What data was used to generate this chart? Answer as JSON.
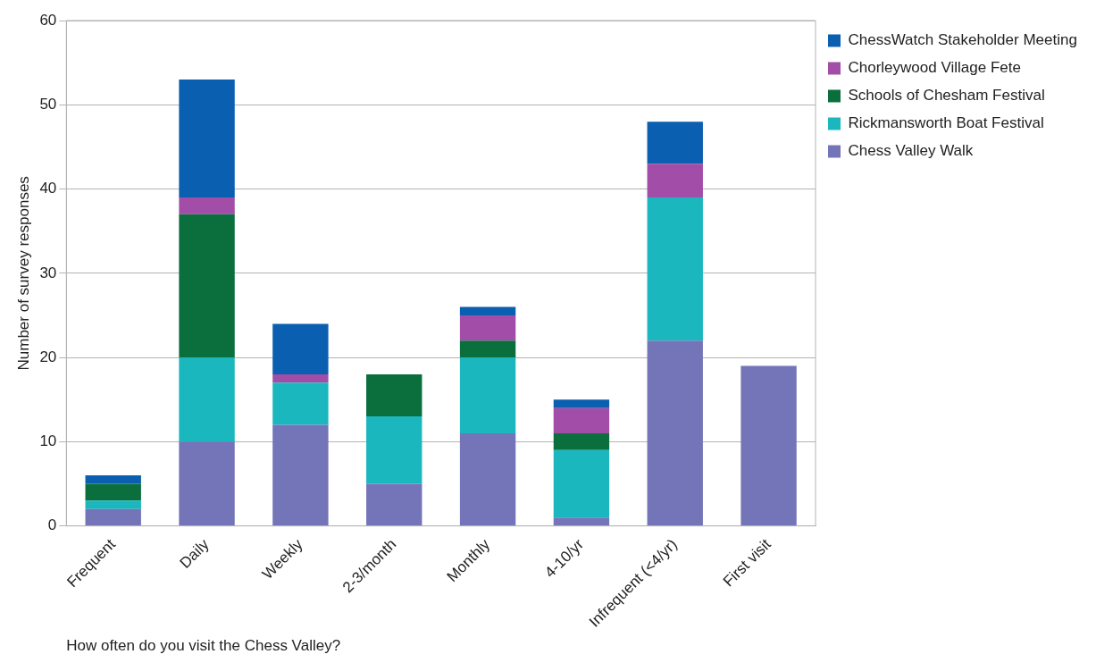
{
  "chart_data": {
    "type": "bar",
    "xlabel": "How often do you visit the Chess Valley?",
    "ylabel": "Number of survey responses",
    "categories": [
      "Frequent",
      "Daily",
      "Weekly",
      "2-3/month",
      "Monthly",
      "4-10/yr",
      "Infrequent (<4/yr)",
      "First visit"
    ],
    "series": [
      {
        "name": "Chess Valley Walk",
        "color": "#7474b8",
        "values": [
          2,
          10,
          12,
          5,
          11,
          1,
          22,
          19
        ]
      },
      {
        "name": "Rickmansworth Boat Festival",
        "color": "#1bb7be",
        "values": [
          1,
          10,
          5,
          8,
          9,
          8,
          17,
          0
        ]
      },
      {
        "name": "Schools of Chesham Festival",
        "color": "#0b6e3d",
        "values": [
          2,
          17,
          0,
          5,
          2,
          2,
          0,
          0
        ]
      },
      {
        "name": "Chorleywood Village Fete",
        "color": "#a24da7",
        "values": [
          0,
          2,
          1,
          0,
          3,
          3,
          4,
          0
        ]
      },
      {
        "name": "ChessWatch Stakeholder Meeting",
        "color": "#0a5fb0",
        "values": [
          1,
          14,
          6,
          0,
          1,
          1,
          5,
          0
        ]
      }
    ],
    "stacked": true,
    "ylim": [
      0,
      60
    ],
    "yticks": [
      0,
      10,
      20,
      30,
      40,
      50,
      60
    ],
    "grid": "y",
    "legend": "right"
  }
}
